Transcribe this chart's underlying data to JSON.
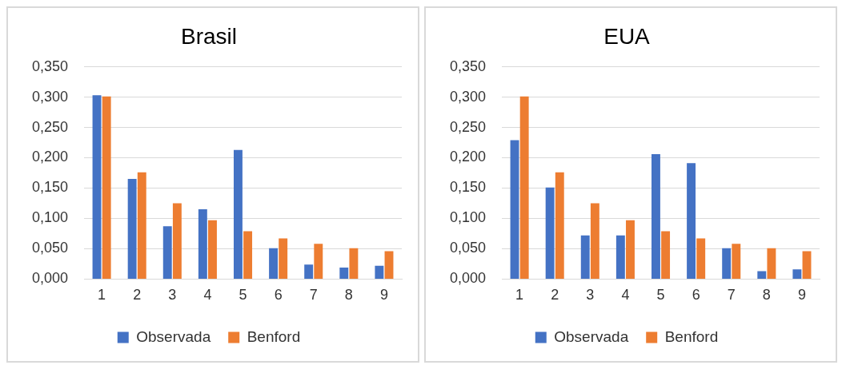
{
  "chart_data": [
    {
      "type": "bar",
      "title": "Brasil",
      "categories": [
        "1",
        "2",
        "3",
        "4",
        "5",
        "6",
        "7",
        "8",
        "9"
      ],
      "series": [
        {
          "name": "Observada",
          "color": "#4472c4",
          "values": [
            0.303,
            0.165,
            0.087,
            0.115,
            0.213,
            0.051,
            0.024,
            0.019,
            0.022
          ]
        },
        {
          "name": "Benford",
          "color": "#ed7d31",
          "values": [
            0.301,
            0.176,
            0.125,
            0.097,
            0.079,
            0.067,
            0.058,
            0.051,
            0.046
          ]
        }
      ],
      "ylim": [
        0,
        0.35
      ],
      "yticks": [
        {
          "value": 0,
          "label": "0,000"
        },
        {
          "value": 0.05,
          "label": "0,050"
        },
        {
          "value": 0.1,
          "label": "0,100"
        },
        {
          "value": 0.15,
          "label": "0,150"
        },
        {
          "value": 0.2,
          "label": "0,200"
        },
        {
          "value": 0.25,
          "label": "0,250"
        },
        {
          "value": 0.3,
          "label": "0,300"
        },
        {
          "value": 0.35,
          "label": "0,350"
        }
      ],
      "grid": "y",
      "legend": "bottom"
    },
    {
      "type": "bar",
      "title": "EUA",
      "categories": [
        "1",
        "2",
        "3",
        "4",
        "5",
        "6",
        "7",
        "8",
        "9"
      ],
      "series": [
        {
          "name": "Observada",
          "color": "#4472c4",
          "values": [
            0.229,
            0.151,
            0.072,
            0.072,
            0.206,
            0.191,
            0.051,
            0.013,
            0.016
          ]
        },
        {
          "name": "Benford",
          "color": "#ed7d31",
          "values": [
            0.301,
            0.176,
            0.125,
            0.097,
            0.079,
            0.067,
            0.058,
            0.051,
            0.046
          ]
        }
      ],
      "ylim": [
        0,
        0.35
      ],
      "yticks": [
        {
          "value": 0,
          "label": "0,000"
        },
        {
          "value": 0.05,
          "label": "0,050"
        },
        {
          "value": 0.1,
          "label": "0,100"
        },
        {
          "value": 0.15,
          "label": "0,150"
        },
        {
          "value": 0.2,
          "label": "0,200"
        },
        {
          "value": 0.25,
          "label": "0,250"
        },
        {
          "value": 0.3,
          "label": "0,300"
        },
        {
          "value": 0.35,
          "label": "0,350"
        }
      ],
      "grid": "y",
      "legend": "bottom"
    }
  ]
}
